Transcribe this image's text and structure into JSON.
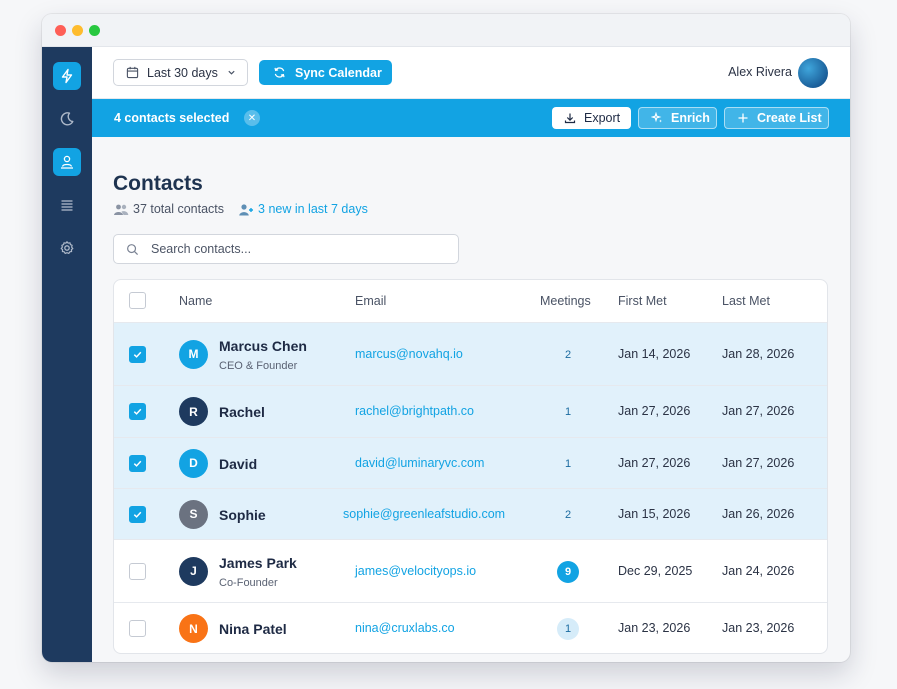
{
  "header": {
    "date_range": "Last 30 days",
    "sync_label": "Sync Calendar",
    "user_name": "Alex Rivera"
  },
  "selection": {
    "text": "4 contacts selected",
    "clear_glyph": "✕",
    "export_label": "Export",
    "enrich_label": "Enrich",
    "create_list_label": "Create List"
  },
  "page": {
    "title": "Contacts",
    "total": "37 total contacts",
    "new": "3 new in last 7 days"
  },
  "search": {
    "placeholder": "Search contacts..."
  },
  "table": {
    "columns": [
      "Name",
      "Email",
      "Meetings",
      "First Met",
      "Last Met"
    ],
    "rows": [
      {
        "initial": "M",
        "name": "Marcus Chen",
        "role": "CEO & Founder",
        "email": "marcus@novahq.io",
        "meetings": "2",
        "first_met": "Jan 14, 2026",
        "last_met": "Jan 28, 2026",
        "selected": true,
        "avatar_color": "#12a3e3"
      },
      {
        "initial": "R",
        "name": "Rachel",
        "role": "",
        "email": "rachel@brightpath.co",
        "meetings": "1",
        "first_met": "Jan 27, 2026",
        "last_met": "Jan 27, 2026",
        "selected": true,
        "avatar_color": "#1e3a5f"
      },
      {
        "initial": "D",
        "name": "David",
        "role": "",
        "email": "david@luminaryvc.com",
        "meetings": "1",
        "first_met": "Jan 27, 2026",
        "last_met": "Jan 27, 2026",
        "selected": true,
        "avatar_color": "#12a3e3"
      },
      {
        "initial": "S",
        "name": "Sophie",
        "role": "",
        "email": "sophie@greenleafstudio.com",
        "meetings": "2",
        "first_met": "Jan 15, 2026",
        "last_met": "Jan 26, 2026",
        "selected": true,
        "avatar_color": "#6b7280"
      },
      {
        "initial": "J",
        "name": "James Park",
        "role": "Co-Founder",
        "email": "james@velocityops.io",
        "meetings": "9",
        "first_met": "Dec 29, 2025",
        "last_met": "Jan 24, 2026",
        "selected": false,
        "avatar_color": "#1e3a5f"
      },
      {
        "initial": "N",
        "name": "Nina Patel",
        "role": "",
        "email": "nina@cruxlabs.co",
        "meetings": "1",
        "first_met": "Jan 23, 2026",
        "last_met": "Jan 23, 2026",
        "selected": false,
        "avatar_color": "#f97316"
      }
    ]
  },
  "colors": {
    "accent": "#12a3e3",
    "sidebar": "#1e3a5f",
    "selected_row": "#e1f1fb"
  },
  "icons": {
    "sidebar": [
      "lightning-icon",
      "moon-icon",
      "contacts-icon",
      "list-icon",
      "gear-icon"
    ],
    "header": [
      "calendar-icon",
      "chevron-down-icon",
      "sync-icon"
    ],
    "actions": [
      "download-icon",
      "sparkle-icon",
      "plus-icon"
    ],
    "stats": [
      "people-icon",
      "person-add-icon"
    ],
    "search": "search-icon"
  }
}
